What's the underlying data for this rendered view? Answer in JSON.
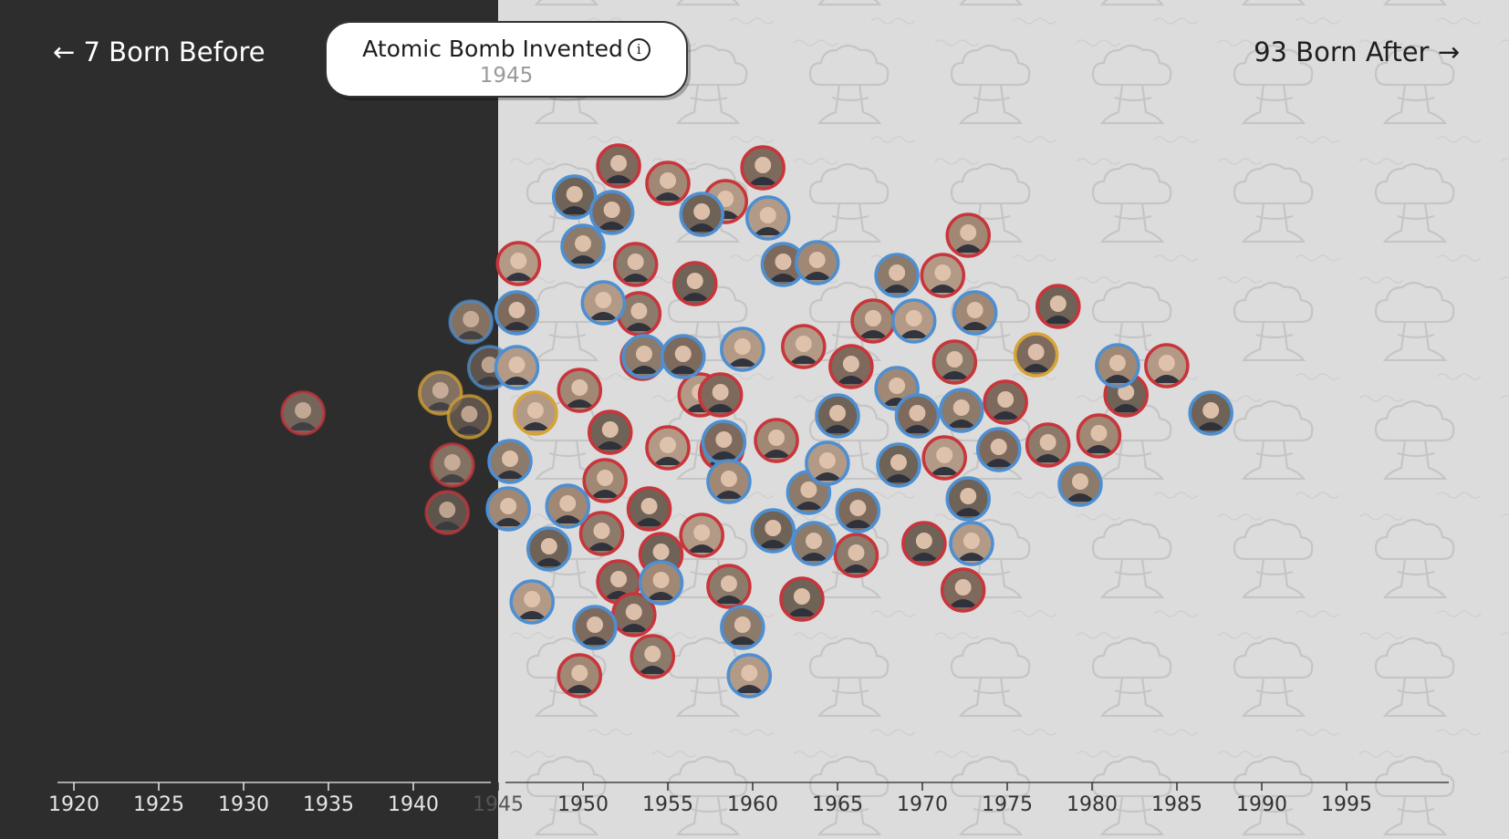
{
  "header": {
    "before_label": "← 7 Born Before",
    "after_label": "93 Born After →",
    "event_title": "Atomic Bomb Invented",
    "event_year": "1945",
    "info_icon": "info-icon"
  },
  "colors": {
    "before_bg": "#2d2d2d",
    "after_bg": "#dcdcdc",
    "pattern": "#c4c4c4",
    "republican": "#c8353b",
    "democrat": "#4d8fd1",
    "independent": "#d6a334",
    "axis": "#444444"
  },
  "chart_data": {
    "type": "scatter",
    "title": "",
    "xlabel": "",
    "ylabel": "",
    "xlim": [
      1919,
      2000
    ],
    "x_ticks": [
      1920,
      1925,
      1930,
      1935,
      1940,
      1945,
      1950,
      1955,
      1960,
      1965,
      1970,
      1975,
      1980,
      1985,
      1990,
      1995
    ],
    "split_year": 1945,
    "grid": false,
    "legend": "none",
    "series": [
      {
        "party": "R",
        "points": [
          [
            1933.5,
            453
          ],
          [
            1942.3,
            510
          ],
          [
            1942.0,
            562
          ],
          [
            1946.2,
            289
          ],
          [
            1952.1,
            182
          ],
          [
            1953.1,
            290
          ],
          [
            1955.0,
            201
          ],
          [
            1956.6,
            311
          ],
          [
            1958.4,
            221
          ],
          [
            1960.6,
            184
          ],
          [
            1951.1,
            585
          ],
          [
            1949.8,
            428
          ],
          [
            1951.6,
            474
          ],
          [
            1955.0,
            491
          ],
          [
            1953.5,
            393
          ],
          [
            1953.3,
            344
          ],
          [
            1951.3,
            527
          ],
          [
            1953.9,
            558
          ],
          [
            1957.0,
            587
          ],
          [
            1952.1,
            638
          ],
          [
            1954.1,
            720
          ],
          [
            1949.8,
            741
          ],
          [
            1954.6,
            608
          ],
          [
            1956.9,
            433
          ],
          [
            1958.1,
            433
          ],
          [
            1958.6,
            643
          ],
          [
            1961.4,
            483
          ],
          [
            1962.9,
            657
          ],
          [
            1963.0,
            380
          ],
          [
            1965.8,
            402
          ],
          [
            1966.1,
            609
          ],
          [
            1967.1,
            352
          ],
          [
            1970.1,
            596
          ],
          [
            1971.2,
            302
          ],
          [
            1972.4,
            647
          ],
          [
            1971.9,
            397
          ],
          [
            1972.7,
            258
          ],
          [
            1978.0,
            336
          ],
          [
            1971.3,
            502
          ],
          [
            1974.9,
            441
          ],
          [
            1977.4,
            488
          ],
          [
            1980.4,
            478
          ],
          [
            1982.0,
            433
          ],
          [
            1984.4,
            401
          ],
          [
            1953.0,
            674
          ],
          [
            1958.2,
            492
          ]
        ]
      },
      {
        "party": "D",
        "points": [
          [
            1943.4,
            353
          ],
          [
            1944.5,
            403
          ],
          [
            1946.1,
            403
          ],
          [
            1946.1,
            343
          ],
          [
            1945.7,
            506
          ],
          [
            1945.6,
            558
          ],
          [
            1949.5,
            216
          ],
          [
            1951.2,
            332
          ],
          [
            1951.7,
            233
          ],
          [
            1950.0,
            270
          ],
          [
            1949.1,
            555
          ],
          [
            1948.0,
            602
          ],
          [
            1947.0,
            660
          ],
          [
            1950.7,
            688
          ],
          [
            1953.6,
            391
          ],
          [
            1954.6,
            639
          ],
          [
            1957.0,
            235
          ],
          [
            1959.4,
            383
          ],
          [
            1958.3,
            485
          ],
          [
            1959.4,
            688
          ],
          [
            1958.6,
            528
          ],
          [
            1961.2,
            582
          ],
          [
            1960.9,
            239
          ],
          [
            1961.8,
            290
          ],
          [
            1963.3,
            540
          ],
          [
            1963.8,
            288
          ],
          [
            1965.0,
            456
          ],
          [
            1964.4,
            508
          ],
          [
            1966.2,
            560
          ],
          [
            1968.5,
            302
          ],
          [
            1968.5,
            426
          ],
          [
            1968.6,
            510
          ],
          [
            1969.5,
            352
          ],
          [
            1969.7,
            456
          ],
          [
            1972.3,
            450
          ],
          [
            1973.1,
            343
          ],
          [
            1972.7,
            547
          ],
          [
            1972.9,
            596
          ],
          [
            1974.5,
            493
          ],
          [
            1979.3,
            531
          ],
          [
            1981.5,
            401
          ],
          [
            1987.0,
            453
          ],
          [
            1959.8,
            741
          ],
          [
            1955.9,
            391
          ],
          [
            1963.6,
            596
          ]
        ]
      },
      {
        "party": "I",
        "points": [
          [
            1941.6,
            431
          ],
          [
            1943.3,
            457
          ],
          [
            1947.2,
            453
          ],
          [
            1976.7,
            389
          ]
        ]
      }
    ]
  }
}
